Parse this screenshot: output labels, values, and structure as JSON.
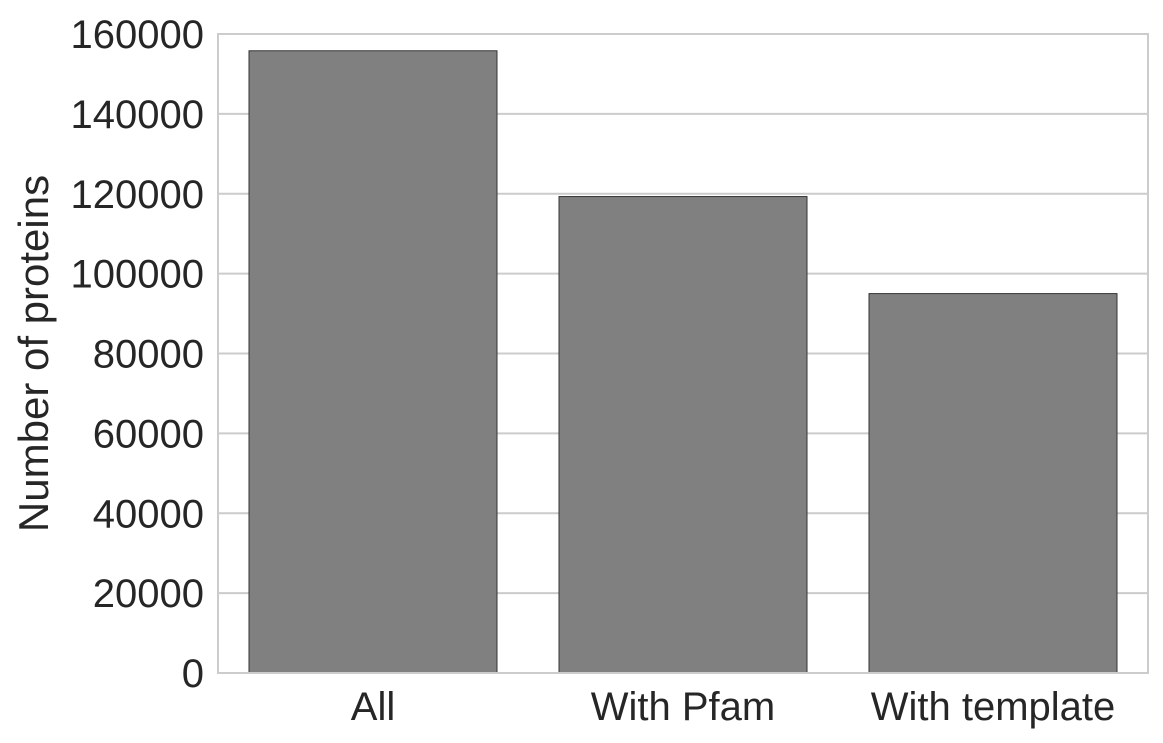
{
  "chart_data": {
    "type": "bar",
    "categories": [
      "All",
      "With Pfam",
      "With template"
    ],
    "values": [
      155800,
      119300,
      95000
    ],
    "title": "",
    "xlabel": "",
    "ylabel": "Number of proteins",
    "ylim": [
      0,
      160000
    ],
    "yticks": [
      0,
      20000,
      40000,
      60000,
      80000,
      100000,
      120000,
      140000,
      160000
    ],
    "ytick_labels": [
      "0",
      "20000",
      "40000",
      "60000",
      "80000",
      "100000",
      "120000",
      "140000",
      "160000"
    ],
    "grid": true,
    "legend": "none",
    "bar_color": "#808080",
    "grid_color": "#cccccc",
    "text_color": "#262626",
    "background": "#ffffff"
  }
}
